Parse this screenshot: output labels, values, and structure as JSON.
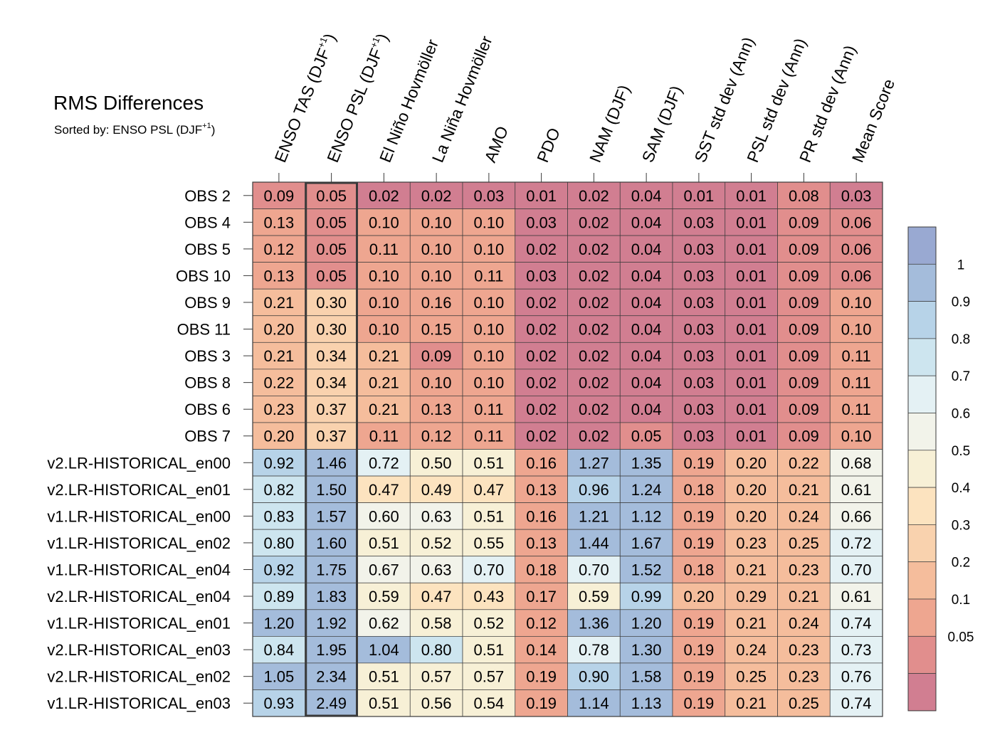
{
  "chart_data": {
    "type": "heatmap",
    "title": "RMS Differences",
    "subtitle": {
      "prefix": "Sorted by: ENSO PSL (DJF",
      "sup": "+1",
      "suffix": ")"
    },
    "sorted_column_index": 1,
    "columns": [
      {
        "text": "ENSO TAS (DJF",
        "sup": "+1",
        "suffix": ")"
      },
      {
        "text": "ENSO PSL (DJF",
        "sup": "+1",
        "suffix": ")"
      },
      {
        "text": "El Niño Hovmöller"
      },
      {
        "text": "La Niña Hovmöller"
      },
      {
        "text": "AMO"
      },
      {
        "text": "PDO"
      },
      {
        "text": "NAM (DJF)"
      },
      {
        "text": "SAM (DJF)"
      },
      {
        "text": "SST std dev (Ann)"
      },
      {
        "text": "PSL std dev (Ann)"
      },
      {
        "text": "PR std dev (Ann)"
      },
      {
        "text": "Mean Score"
      }
    ],
    "rows": [
      "OBS 2",
      "OBS 4",
      "OBS 5",
      "OBS 10",
      "OBS 9",
      "OBS 11",
      "OBS 3",
      "OBS 8",
      "OBS 6",
      "OBS 7",
      "v2.LR-HISTORICAL_en00",
      "v2.LR-HISTORICAL_en01",
      "v1.LR-HISTORICAL_en00",
      "v1.LR-HISTORICAL_en02",
      "v1.LR-HISTORICAL_en04",
      "v2.LR-HISTORICAL_en04",
      "v1.LR-HISTORICAL_en01",
      "v2.LR-HISTORICAL_en03",
      "v2.LR-HISTORICAL_en02",
      "v1.LR-HISTORICAL_en03"
    ],
    "values": [
      [
        "0.09",
        "0.05",
        "0.02",
        "0.02",
        "0.03",
        "0.01",
        "0.02",
        "0.04",
        "0.01",
        "0.01",
        "0.08",
        "0.03"
      ],
      [
        "0.13",
        "0.05",
        "0.10",
        "0.10",
        "0.10",
        "0.03",
        "0.02",
        "0.04",
        "0.03",
        "0.01",
        "0.09",
        "0.06"
      ],
      [
        "0.12",
        "0.05",
        "0.11",
        "0.10",
        "0.10",
        "0.02",
        "0.02",
        "0.04",
        "0.03",
        "0.01",
        "0.09",
        "0.06"
      ],
      [
        "0.13",
        "0.05",
        "0.10",
        "0.10",
        "0.11",
        "0.03",
        "0.02",
        "0.04",
        "0.03",
        "0.01",
        "0.09",
        "0.06"
      ],
      [
        "0.21",
        "0.30",
        "0.10",
        "0.16",
        "0.10",
        "0.02",
        "0.02",
        "0.04",
        "0.03",
        "0.01",
        "0.09",
        "0.10"
      ],
      [
        "0.20",
        "0.30",
        "0.10",
        "0.15",
        "0.10",
        "0.02",
        "0.02",
        "0.04",
        "0.03",
        "0.01",
        "0.09",
        "0.10"
      ],
      [
        "0.21",
        "0.34",
        "0.21",
        "0.09",
        "0.10",
        "0.02",
        "0.02",
        "0.04",
        "0.03",
        "0.01",
        "0.09",
        "0.11"
      ],
      [
        "0.22",
        "0.34",
        "0.21",
        "0.10",
        "0.10",
        "0.02",
        "0.02",
        "0.04",
        "0.03",
        "0.01",
        "0.09",
        "0.11"
      ],
      [
        "0.23",
        "0.37",
        "0.21",
        "0.13",
        "0.11",
        "0.02",
        "0.02",
        "0.04",
        "0.03",
        "0.01",
        "0.09",
        "0.11"
      ],
      [
        "0.20",
        "0.37",
        "0.11",
        "0.12",
        "0.11",
        "0.02",
        "0.02",
        "0.05",
        "0.03",
        "0.01",
        "0.09",
        "0.10"
      ],
      [
        "0.92",
        "1.46",
        "0.72",
        "0.50",
        "0.51",
        "0.16",
        "1.27",
        "1.35",
        "0.19",
        "0.20",
        "0.22",
        "0.68"
      ],
      [
        "0.82",
        "1.50",
        "0.47",
        "0.49",
        "0.47",
        "0.13",
        "0.96",
        "1.24",
        "0.18",
        "0.20",
        "0.21",
        "0.61"
      ],
      [
        "0.83",
        "1.57",
        "0.60",
        "0.63",
        "0.51",
        "0.16",
        "1.21",
        "1.12",
        "0.19",
        "0.20",
        "0.24",
        "0.66"
      ],
      [
        "0.80",
        "1.60",
        "0.51",
        "0.52",
        "0.55",
        "0.13",
        "1.44",
        "1.67",
        "0.19",
        "0.23",
        "0.25",
        "0.72"
      ],
      [
        "0.92",
        "1.75",
        "0.67",
        "0.63",
        "0.70",
        "0.18",
        "0.70",
        "1.52",
        "0.18",
        "0.21",
        "0.23",
        "0.70"
      ],
      [
        "0.89",
        "1.83",
        "0.59",
        "0.47",
        "0.43",
        "0.17",
        "0.59",
        "0.99",
        "0.20",
        "0.29",
        "0.21",
        "0.61"
      ],
      [
        "1.20",
        "1.92",
        "0.62",
        "0.58",
        "0.52",
        "0.12",
        "1.36",
        "1.20",
        "0.19",
        "0.21",
        "0.24",
        "0.74"
      ],
      [
        "0.84",
        "1.95",
        "1.04",
        "0.80",
        "0.51",
        "0.14",
        "0.78",
        "1.30",
        "0.19",
        "0.24",
        "0.23",
        "0.73"
      ],
      [
        "1.05",
        "2.34",
        "0.51",
        "0.57",
        "0.57",
        "0.19",
        "0.90",
        "1.58",
        "0.19",
        "0.25",
        "0.23",
        "0.76"
      ],
      [
        "0.93",
        "2.49",
        "0.51",
        "0.56",
        "0.54",
        "0.19",
        "1.14",
        "1.13",
        "0.19",
        "0.21",
        "0.25",
        "0.74"
      ]
    ],
    "colorbar": {
      "thresholds": [
        0.05,
        0.1,
        0.2,
        0.3,
        0.4,
        0.5,
        0.6,
        0.7,
        0.8,
        0.9,
        1
      ],
      "labels": [
        "0.05",
        "0.1",
        "0.2",
        "0.3",
        "0.4",
        "0.5",
        "0.6",
        "0.7",
        "0.8",
        "0.9",
        "1"
      ],
      "colors_low_to_high": [
        "#d17e91",
        "#e18e8d",
        "#eea690",
        "#f5bd9c",
        "#f9d2ae",
        "#fce3bf",
        "#f7f0d6",
        "#f2f3ea",
        "#e4f1f4",
        "#cde5ef",
        "#b7d3e8",
        "#a4bcdb",
        "#99a9d2"
      ]
    },
    "colors": {
      "grid": "#3a3a3a",
      "highlight_border": "#3a3a3a"
    }
  }
}
